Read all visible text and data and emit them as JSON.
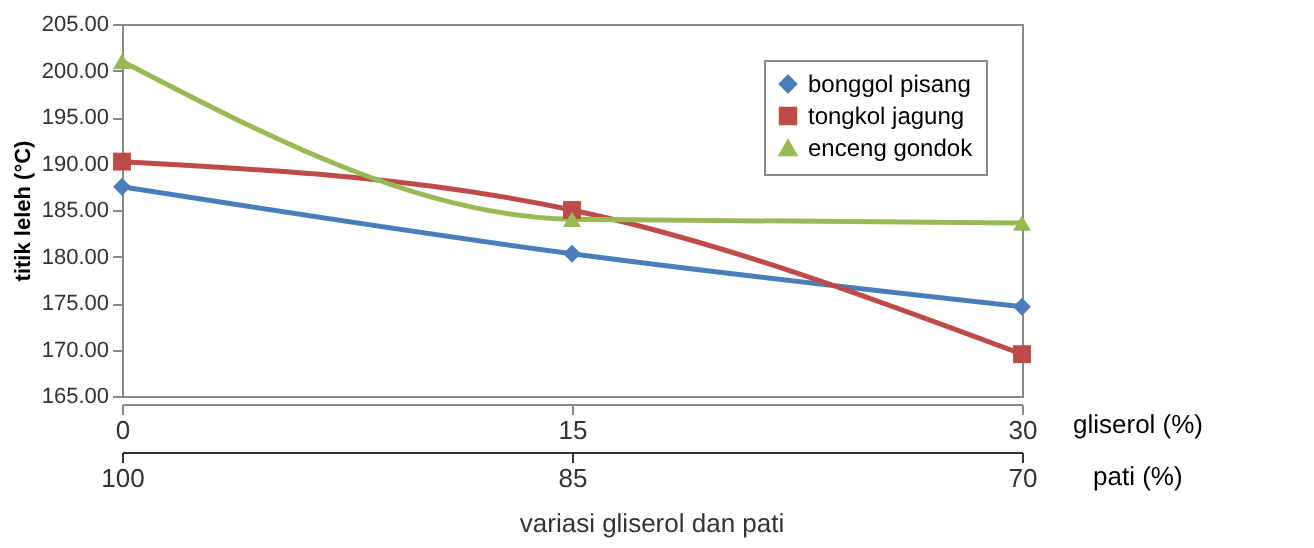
{
  "chart_data": {
    "type": "line",
    "ylabel": "titik leleh (°C)",
    "xlabel": "gliserol (%)",
    "x2label": "pati (%)",
    "annotations": [
      "variasi gliserol dan pati"
    ],
    "x": [
      0,
      15,
      30
    ],
    "xlim": [
      0,
      30
    ],
    "xticks": [
      0,
      15,
      30
    ],
    "x2lim": [
      100,
      70
    ],
    "x2ticks": [
      100,
      85,
      70
    ],
    "ylim": [
      165,
      205
    ],
    "yticks": [
      {
        "value": 165,
        "label": "165.00"
      },
      {
        "value": 170,
        "label": "170.00"
      },
      {
        "value": 175,
        "label": "175.00"
      },
      {
        "value": 180,
        "label": "180.00"
      },
      {
        "value": 185,
        "label": "185.00"
      },
      {
        "value": 190,
        "label": "190.00"
      },
      {
        "value": 195,
        "label": "195.00"
      },
      {
        "value": 200,
        "label": "200.00"
      },
      {
        "value": 205,
        "label": "205.00"
      }
    ],
    "series": [
      {
        "name": "bonggol pisang",
        "color": "#4a7ebb",
        "marker": "diamond",
        "values": [
          187.5,
          180.3,
          174.6
        ]
      },
      {
        "name": "tongkol jagung",
        "color": "#be4b48",
        "marker": "square",
        "values": [
          190.2,
          185.0,
          169.5
        ]
      },
      {
        "name": "enceng gondok",
        "color": "#98b954",
        "marker": "triangle",
        "values": [
          201.0,
          184.0,
          183.6
        ]
      }
    ],
    "legend": "top right",
    "grid": false,
    "line_style": "solid"
  }
}
